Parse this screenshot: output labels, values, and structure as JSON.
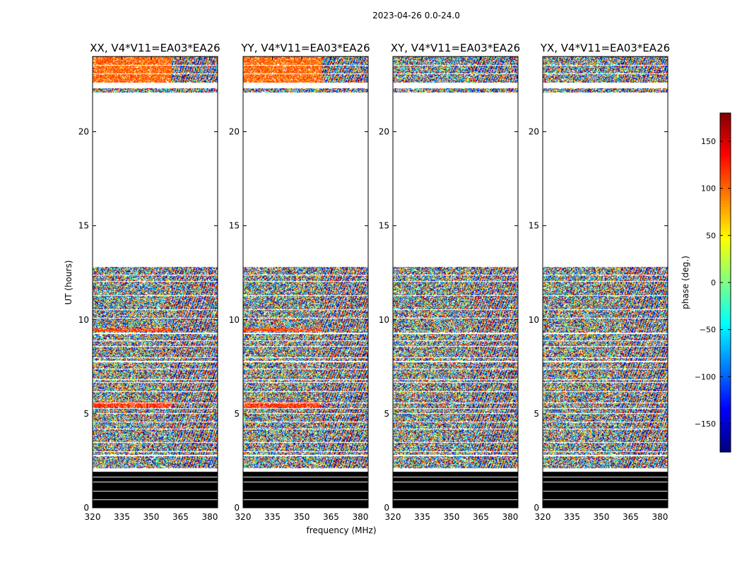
{
  "chart_data": {
    "type": "heatmap",
    "suptitle": "2023-04-26 0.0-24.0",
    "xlabel": "frequency (MHz)",
    "ylabel": "UT (hours)",
    "xlim": [
      320,
      384
    ],
    "ylim": [
      0,
      24
    ],
    "xticks": [
      320,
      335,
      350,
      365,
      380
    ],
    "xtick_labels": [
      "320",
      "335",
      "350",
      "365",
      "380"
    ],
    "yticks": [
      0,
      5,
      10,
      15,
      20
    ],
    "ytick_labels": [
      "0",
      "5",
      "10",
      "15",
      "20"
    ],
    "panels": [
      {
        "title": "XX, V4*V11=EA03*EA26",
        "polarization": "XX"
      },
      {
        "title": "YY, V4*V11=EA03*EA26",
        "polarization": "YY"
      },
      {
        "title": "XY, V4*V11=EA03*EA26",
        "polarization": "XY"
      },
      {
        "title": "YX, V4*V11=EA03*EA26",
        "polarization": "YX"
      }
    ],
    "data_bands": [
      {
        "ut_start": 0.0,
        "ut_end": 1.9,
        "fill": "black",
        "gaps": [
          0.45,
          0.9,
          1.4,
          1.65
        ]
      },
      {
        "ut_start": 2.1,
        "ut_end": 12.8,
        "fill": "noisy-phase",
        "gaps": [
          2.8,
          3.0,
          3.5,
          4.2,
          4.6,
          5.05,
          5.3,
          5.6,
          6.2,
          6.7,
          6.85,
          7.4,
          7.8,
          8.0,
          8.6,
          8.9,
          9.3,
          10.1,
          10.55,
          11.3,
          12.05,
          12.4
        ]
      },
      {
        "ut_start": 22.1,
        "ut_end": 22.3,
        "fill": "noisy-phase",
        "gaps": []
      },
      {
        "ut_start": 22.6,
        "ut_end": 24.0,
        "fill": "noisy-phase",
        "gaps": [
          23.1,
          23.55
        ]
      }
    ],
    "coherent_rows_copolar": [
      {
        "ut_start": 5.35,
        "ut_end": 5.65,
        "phase_deg": 120
      },
      {
        "ut_start": 9.4,
        "ut_end": 9.55,
        "phase_deg": 115
      },
      {
        "ut_start": 22.6,
        "ut_end": 24.0,
        "phase_deg": 100
      }
    ],
    "colorbar": {
      "label": "phase (deg.)",
      "range": [
        -180,
        180
      ],
      "ticks": [
        -150,
        -100,
        -50,
        0,
        50,
        100,
        150
      ],
      "tick_labels": [
        "−150",
        "−100",
        "−50",
        "0",
        "50",
        "100",
        "150"
      ],
      "colormap": "jet"
    }
  }
}
